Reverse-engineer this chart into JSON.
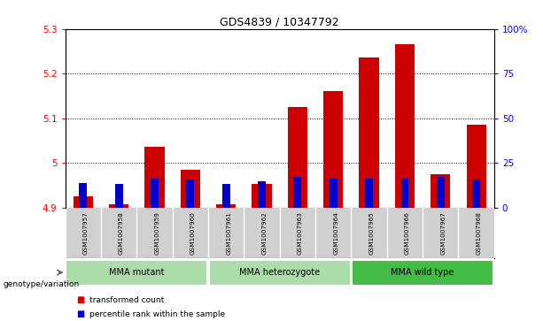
{
  "title": "GDS4839 / 10347792",
  "samples": [
    "GSM1007957",
    "GSM1007958",
    "GSM1007959",
    "GSM1007960",
    "GSM1007961",
    "GSM1007962",
    "GSM1007963",
    "GSM1007964",
    "GSM1007965",
    "GSM1007966",
    "GSM1007967",
    "GSM1007968"
  ],
  "red_values": [
    4.925,
    4.908,
    5.035,
    4.985,
    4.908,
    4.953,
    5.125,
    5.16,
    5.235,
    5.265,
    4.975,
    5.085
  ],
  "blue_values": [
    4.955,
    4.952,
    4.965,
    4.962,
    4.953,
    4.958,
    4.968,
    4.965,
    4.965,
    4.965,
    4.968,
    4.963
  ],
  "ylim_left": [
    4.9,
    5.3
  ],
  "ylim_right": [
    0,
    100
  ],
  "yticks_left": [
    4.9,
    5.0,
    5.1,
    5.2,
    5.3
  ],
  "ytick_labels_left": [
    "4.9",
    "5",
    "5.1",
    "5.2",
    "5.3"
  ],
  "yticks_right": [
    0,
    25,
    50,
    75,
    100
  ],
  "ytick_labels_right": [
    "0",
    "25",
    "50",
    "75",
    "100%"
  ],
  "bar_color_red": "#cc0000",
  "bar_color_blue": "#0000cc",
  "bar_bottom": 4.9,
  "bg_names": "#d0d0d0",
  "bg_plot": "#ffffff",
  "legend_red": "transformed count",
  "legend_blue": "percentile rank within the sample",
  "genotype_label": "genotype/variation",
  "group_data": [
    {
      "label": "MMA mutant",
      "start": 0,
      "end": 3,
      "color": "#aaddaa"
    },
    {
      "label": "MMA heterozygote",
      "start": 4,
      "end": 7,
      "color": "#aaddaa"
    },
    {
      "label": "MMA wild type",
      "start": 8,
      "end": 11,
      "color": "#44bb44"
    }
  ]
}
